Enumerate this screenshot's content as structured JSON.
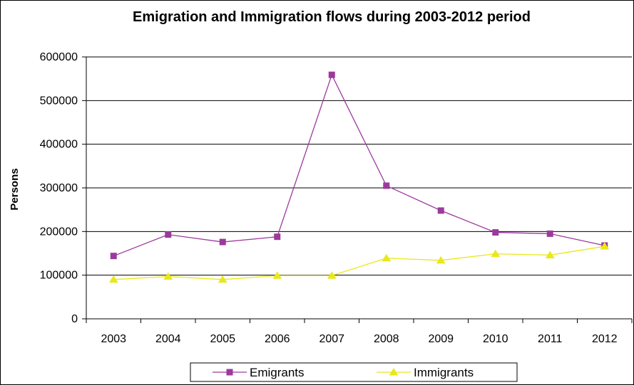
{
  "chart_data": {
    "type": "line",
    "title": "Emigration and Immigration flows during 2003-2012 period",
    "xlabel": "",
    "ylabel": "Persons",
    "categories": [
      "2003",
      "2004",
      "2005",
      "2006",
      "2007",
      "2008",
      "2009",
      "2010",
      "2011",
      "2012"
    ],
    "ylim": [
      0,
      600000
    ],
    "yticks": [
      0,
      100000,
      200000,
      300000,
      400000,
      500000,
      600000
    ],
    "grid": true,
    "legend_position": "bottom",
    "series": [
      {
        "name": "Emigrants",
        "color": "#9C3A9C",
        "marker": "square",
        "values": [
          144000,
          193000,
          176000,
          188000,
          559000,
          305000,
          248000,
          198000,
          195000,
          168000
        ]
      },
      {
        "name": "Immigrants",
        "color": "#E8E81A",
        "marker": "triangle",
        "values": [
          90000,
          97000,
          90000,
          99000,
          99000,
          139000,
          134000,
          149000,
          146000,
          166000
        ]
      }
    ]
  }
}
